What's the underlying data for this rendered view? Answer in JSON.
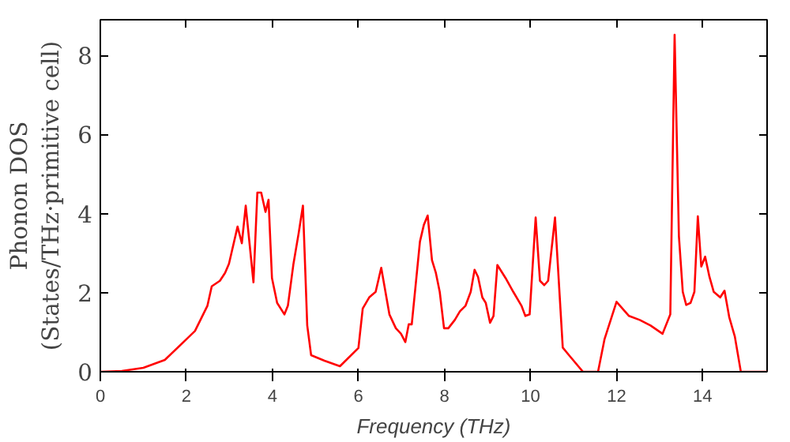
{
  "chart_data": {
    "type": "line",
    "xlabel": "Frequency (THz)",
    "ylabel": "Phonon DOS\n(States/THz·primitive cell)",
    "xlim": [
      0,
      15.5
    ],
    "ylim": [
      0,
      8.9
    ],
    "xticks": [
      0,
      2,
      4,
      6,
      8,
      10,
      12,
      14
    ],
    "yticks": [
      0,
      2,
      4,
      6,
      8
    ],
    "grid": false,
    "line_style": "solid",
    "marker": "none",
    "series": [
      {
        "color": "#ff0000",
        "x": [
          0,
          0.5,
          1,
          1.5,
          2.0,
          2.2,
          2.49,
          2.59,
          2.78,
          2.9,
          2.99,
          3.19,
          3.29,
          3.38,
          3.56,
          3.65,
          3.74,
          3.84,
          3.91,
          3.99,
          4.11,
          4.28,
          4.36,
          4.49,
          4.61,
          4.71,
          4.81,
          4.9,
          5.21,
          5.57,
          6.0,
          6.1,
          6.25,
          6.4,
          6.53,
          6.72,
          6.87,
          6.99,
          7.09,
          7.17,
          7.24,
          7.43,
          7.52,
          7.61,
          7.71,
          7.8,
          7.89,
          7.99,
          8.09,
          8.24,
          8.36,
          8.49,
          8.61,
          8.7,
          8.78,
          8.88,
          8.96,
          9.06,
          9.14,
          9.23,
          9.42,
          9.6,
          9.79,
          9.88,
          9.98,
          10.12,
          10.22,
          10.32,
          10.41,
          10.57,
          10.75,
          10.91,
          11.22,
          11.57,
          11.72,
          12.0,
          12.29,
          12.54,
          12.79,
          13.07,
          13.25,
          13.35,
          13.45,
          13.54,
          13.62,
          13.72,
          13.81,
          13.89,
          13.97,
          14.06,
          14.16,
          14.26,
          14.41,
          14.51,
          14.62,
          14.75,
          14.89,
          15.5
        ],
        "values": [
          0,
          0.02,
          0.1,
          0.3,
          0.82,
          1.03,
          1.67,
          2.16,
          2.3,
          2.5,
          2.73,
          3.67,
          3.25,
          4.2,
          2.26,
          4.53,
          4.53,
          4.04,
          4.35,
          2.37,
          1.74,
          1.45,
          1.67,
          2.73,
          3.5,
          4.2,
          1.17,
          0.42,
          0.28,
          0.14,
          0.6,
          1.6,
          1.88,
          2.02,
          2.63,
          1.45,
          1.1,
          0.96,
          0.75,
          1.2,
          1.2,
          3.29,
          3.71,
          3.95,
          2.82,
          2.5,
          2.02,
          1.1,
          1.1,
          1.31,
          1.53,
          1.67,
          2.02,
          2.58,
          2.4,
          1.88,
          1.74,
          1.24,
          1.41,
          2.7,
          2.37,
          2.02,
          1.67,
          1.41,
          1.45,
          3.9,
          2.3,
          2.19,
          2.3,
          3.9,
          0.61,
          0.4,
          0,
          0,
          0.82,
          1.77,
          1.41,
          1.31,
          1.17,
          0.96,
          1.45,
          8.52,
          3.43,
          2.02,
          1.69,
          1.74,
          2.02,
          3.93,
          2.66,
          2.91,
          2.4,
          2.02,
          1.88,
          2.05,
          1.38,
          0.89,
          0,
          0
        ]
      }
    ]
  }
}
